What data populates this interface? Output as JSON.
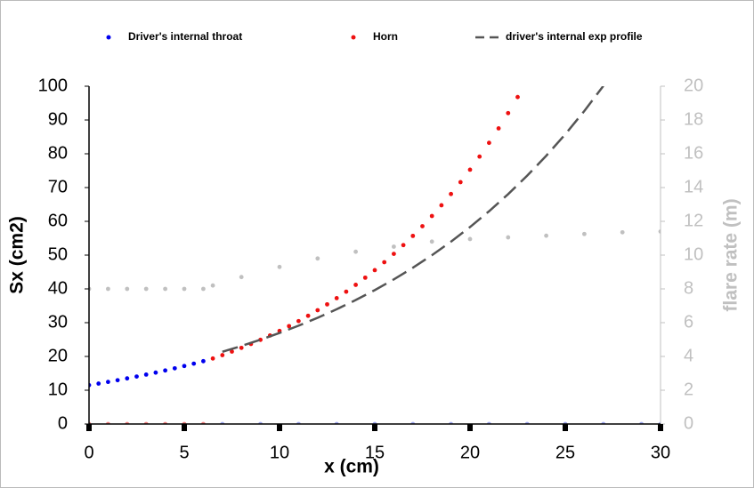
{
  "chart_data": {
    "type": "scatter",
    "x_label": "x (cm)",
    "y_label": "Sx (cm2)",
    "y2_label": "flare rate (m)",
    "xlim": [
      0,
      30
    ],
    "xticks": [
      0,
      5,
      10,
      15,
      20,
      25,
      30
    ],
    "ylim": [
      0,
      100
    ],
    "yticks": [
      0,
      10,
      20,
      30,
      40,
      50,
      60,
      70,
      80,
      90,
      100
    ],
    "y2lim": [
      0,
      20
    ],
    "y2ticks": [
      0,
      2,
      4,
      6,
      8,
      10,
      12,
      14,
      16,
      18,
      20
    ],
    "legend": "top",
    "series": [
      {
        "name": "Driver's internal throat",
        "color": "#0000ee",
        "style": "dots",
        "x": [
          0,
          0.5,
          1,
          1.5,
          2,
          2.5,
          3,
          3.5,
          4,
          4.5,
          5,
          5.5,
          6
        ],
        "values": [
          11.5,
          11.97,
          12.46,
          12.97,
          13.5,
          14.05,
          14.63,
          15.22,
          15.85,
          16.49,
          17.17,
          17.87,
          18.6
        ]
      },
      {
        "name": "Horn",
        "color": "#ee1111",
        "style": "dots",
        "x": [
          6.5,
          7,
          7.5,
          8,
          8.5,
          9,
          9.5,
          10,
          10.5,
          11,
          11.5,
          12,
          12.5,
          13,
          13.5,
          14,
          14.5,
          15,
          15.5,
          16,
          16.5,
          17,
          17.5,
          18,
          18.5,
          19,
          19.5,
          20,
          20.5,
          21,
          21.5,
          22,
          22.5
        ],
        "values": [
          19.39,
          20.39,
          21.44,
          22.54,
          23.7,
          24.92,
          26.21,
          27.56,
          28.98,
          30.47,
          32.04,
          33.69,
          35.43,
          37.26,
          39.18,
          41.2,
          43.32,
          45.55,
          47.9,
          50.37,
          52.96,
          55.69,
          58.56,
          61.58,
          64.75,
          68.09,
          71.6,
          75.29,
          79.17,
          83.24,
          87.53,
          92.04,
          96.79
        ]
      },
      {
        "name": "driver's internal exp profile",
        "color": "#555555",
        "style": "dashed",
        "x": [
          7,
          8,
          9,
          10,
          11,
          12,
          13,
          14,
          15,
          16,
          17,
          18,
          19,
          20,
          21,
          22,
          23,
          24,
          25,
          26,
          27
        ],
        "values": [
          21.38,
          23.09,
          24.95,
          26.95,
          29.11,
          31.45,
          33.97,
          36.7,
          39.64,
          42.82,
          46.26,
          49.97,
          53.98,
          58.31,
          62.99,
          68.05,
          73.51,
          79.41,
          85.78,
          92.67,
          100.1
        ]
      },
      {
        "color": "#c0c0c0",
        "style": "dots",
        "axis": "y2",
        "x": [
          0,
          1,
          2,
          3,
          4,
          5,
          6,
          6.5,
          8,
          10,
          12,
          14,
          16,
          18,
          20,
          22,
          24,
          26,
          28,
          30
        ],
        "values": [
          8,
          8,
          8,
          8,
          8,
          8,
          8,
          8.2,
          8.7,
          9.3,
          9.8,
          10.2,
          10.5,
          10.8,
          10.95,
          11.05,
          11.15,
          11.25,
          11.35,
          11.4
        ]
      },
      {
        "color": "#f08080",
        "style": "dots",
        "axis": "y2",
        "x": [
          0,
          1,
          2,
          3,
          4,
          5,
          6
        ],
        "values": [
          0,
          0,
          0,
          0,
          0,
          0,
          0
        ]
      },
      {
        "color": "#a0a8f0",
        "style": "dots",
        "axis": "y2",
        "x": [
          7,
          9,
          11,
          13,
          15,
          17,
          19,
          21,
          23,
          25,
          27,
          29,
          30
        ],
        "values": [
          0,
          0,
          0,
          0,
          0,
          0,
          0,
          0,
          0,
          0,
          0,
          0,
          0
        ]
      }
    ]
  }
}
